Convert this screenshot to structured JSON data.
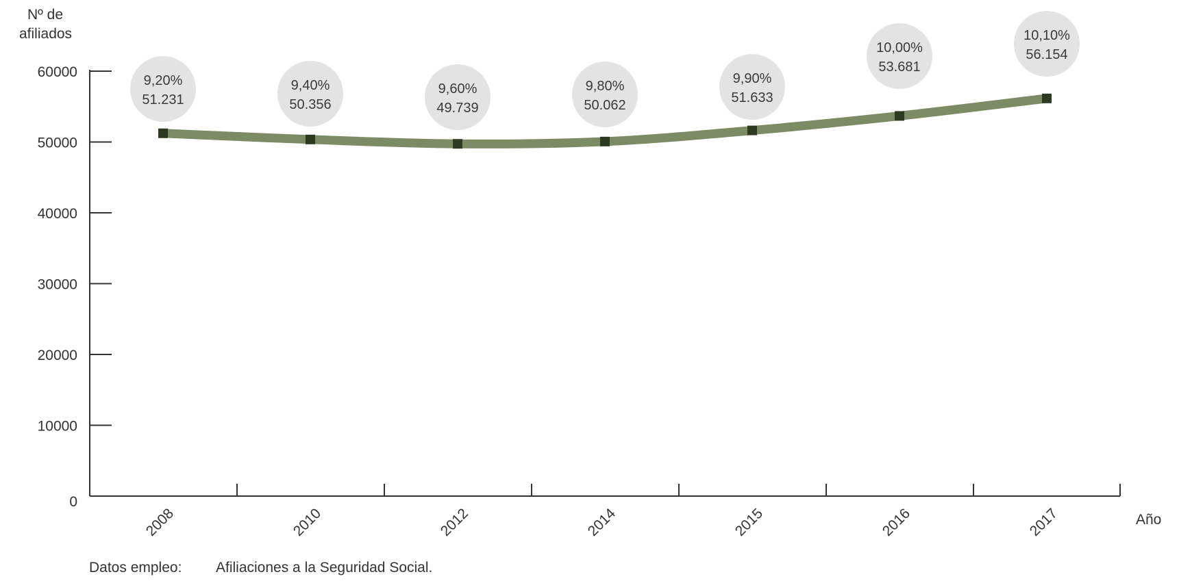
{
  "chart_data": {
    "type": "line",
    "ylabel_line1": "Nº de",
    "ylabel_line2": "afiliados",
    "xlabel": "Año",
    "categories": [
      "2008",
      "2010",
      "2012",
      "2014",
      "2015",
      "2016",
      "2017"
    ],
    "values": [
      51231,
      50356,
      49739,
      50062,
      51633,
      53681,
      56154
    ],
    "value_labels": [
      "51.231",
      "50.356",
      "49.739",
      "50.062",
      "51.633",
      "53.681",
      "56.154"
    ],
    "percent_labels": [
      "9,20%",
      "9,40%",
      "9,60%",
      "9,80%",
      "9,90%",
      "10,00%",
      "10,10%"
    ],
    "yticks": [
      0,
      10000,
      20000,
      30000,
      40000,
      50000,
      60000
    ],
    "ylim": [
      0,
      60000
    ],
    "grid": false,
    "legend": "none",
    "colors": {
      "line": "#7b8c64",
      "marker": "#2b3a20",
      "bubble": "#e3e3e3",
      "axis": "#333333"
    }
  },
  "footnote": {
    "label": "Datos empleo:",
    "text": "Afiliaciones a la Seguridad Social."
  }
}
